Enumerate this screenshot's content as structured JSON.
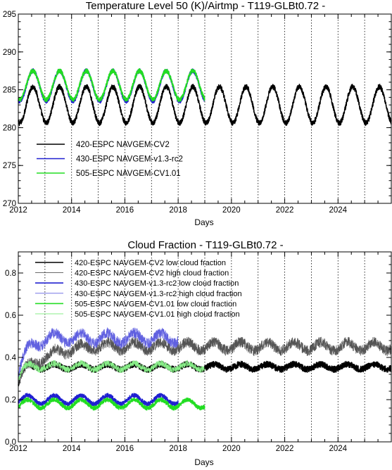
{
  "chart_data": [
    {
      "type": "line",
      "title": "Temperature Level 50 (K)/Airtmp - T119-GLBt0.72 -",
      "xlabel": "Days",
      "ylabel": "",
      "xlim": [
        2012.0,
        2026.0
      ],
      "ylim": [
        270,
        295
      ],
      "xticks": [
        2012,
        2014,
        2016,
        2018,
        2020,
        2022,
        2024
      ],
      "xtick_labels": [
        "2012",
        "2014",
        "2016",
        "2018",
        "2020",
        "2022",
        "2024"
      ],
      "yticks": [
        270,
        275,
        280,
        285,
        290,
        295
      ],
      "ytick_labels": [
        "270",
        "275",
        "280",
        "285",
        "290",
        "295"
      ],
      "year_gridlines": "dotted vertical line at every year",
      "legend_position": "lower-left",
      "series": [
        {
          "name": "420-ESPC NAVGEM-CV2",
          "color": "#000000",
          "x_start": 2012.0,
          "x_end": 2026.0,
          "mean": 283.0,
          "amplitude": 2.4,
          "period_years": 1.0,
          "peak_phase": 0.55,
          "noise": 0.35,
          "approx_annual_range": [
            280,
            286
          ]
        },
        {
          "name": "430-ESPC NAVGEM-v1.3-rc2",
          "color": "#2020d0",
          "x_start": 2012.0,
          "x_end": 2019.0,
          "mean": 285.5,
          "amplitude": 2.0,
          "period_years": 1.0,
          "peak_phase": 0.55,
          "noise": 0.3,
          "approx_annual_range": [
            283.5,
            288.5
          ]
        },
        {
          "name": "505-ESPC NAVGEM-CV1.01",
          "color": "#22dd22",
          "x_start": 2012.0,
          "x_end": 2019.0,
          "mean": 285.6,
          "amplitude": 1.9,
          "period_years": 1.0,
          "peak_phase": 0.55,
          "noise": 0.3,
          "approx_annual_range": [
            284,
            288.5
          ]
        }
      ]
    },
    {
      "type": "line",
      "title": "Cloud Fraction - T119-GLBt0.72 -",
      "xlabel": "Days",
      "ylabel": "",
      "xlim": [
        2012.0,
        2026.0
      ],
      "ylim": [
        0.0,
        0.9
      ],
      "xticks": [
        2012,
        2014,
        2016,
        2018,
        2020,
        2022,
        2024
      ],
      "xtick_labels": [
        "2012",
        "2014",
        "2016",
        "2018",
        "2020",
        "2022",
        "2024"
      ],
      "yticks": [
        0.0,
        0.2,
        0.4,
        0.6,
        0.8
      ],
      "ytick_labels": [
        "0.0",
        "0.2",
        "0.4",
        "0.6",
        "0.8"
      ],
      "year_gridlines": "dotted vertical line at every year",
      "legend_position": "top-left",
      "series": [
        {
          "name": "420-ESPC NAVGEM-CV2 low cloud fraction",
          "color": "#000000",
          "stroke": "thick",
          "x_start": 2012.0,
          "x_end": 2026.0,
          "start_value": 0.27,
          "mean": 0.36,
          "ramp_years": 0.4,
          "amplitude": 0.012,
          "period_years": 1.0,
          "noise": 0.015
        },
        {
          "name": "420-ESPC NAVGEM-CV2 high cloud fraction",
          "color": "#555555",
          "stroke": "thin",
          "x_start": 2012.0,
          "x_end": 2026.0,
          "start_value": 0.3,
          "mean": 0.46,
          "ramp_years": 3.0,
          "amplitude": 0.02,
          "period_years": 1.0,
          "noise": 0.025
        },
        {
          "name": "430-ESPC NAVGEM-v1.3-rc2 low cloud fraction",
          "color": "#2020d0",
          "stroke": "thick",
          "x_start": 2012.0,
          "x_end": 2018.0,
          "start_value": 0.2,
          "mean": 0.2,
          "ramp_years": 0.1,
          "amplitude": 0.02,
          "period_years": 1.0,
          "noise": 0.01
        },
        {
          "name": "430-ESPC NAVGEM-v1.3-rc2 high cloud fraction",
          "color": "#6060e0",
          "stroke": "thin",
          "x_start": 2012.0,
          "x_end": 2018.0,
          "start_value": 0.33,
          "mean": 0.5,
          "ramp_years": 1.2,
          "amplitude": 0.025,
          "period_years": 1.0,
          "noise": 0.025
        },
        {
          "name": "505-ESPC NAVGEM-CV1.01 low cloud fraction",
          "color": "#22dd22",
          "stroke": "thick",
          "x_start": 2012.0,
          "x_end": 2019.0,
          "start_value": 0.18,
          "mean": 0.18,
          "ramp_years": 0.1,
          "amplitude": 0.02,
          "period_years": 1.0,
          "noise": 0.01
        },
        {
          "name": "505-ESPC NAVGEM-CV1.01 high cloud fraction",
          "color": "#88ee88",
          "stroke": "thin",
          "x_start": 2012.0,
          "x_end": 2019.0,
          "start_value": 0.3,
          "mean": 0.36,
          "ramp_years": 0.5,
          "amplitude": 0.015,
          "period_years": 1.0,
          "noise": 0.015
        }
      ]
    }
  ]
}
